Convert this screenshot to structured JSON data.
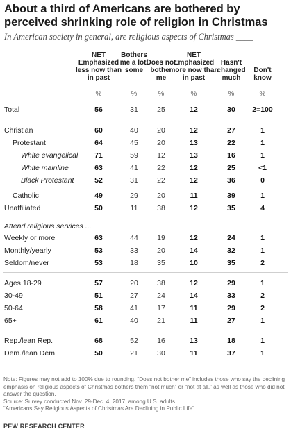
{
  "title": "About a third of Americans are bothered by perceived shrinking role of religion in Christmas",
  "subtitle": "In American society in general, are religious aspects of Christmas ____",
  "pct_symbol": "%",
  "chart_data": {
    "type": "table",
    "columns": [
      "NET Emphasized less now than in past",
      "Bothers me a lot/ some",
      "Does not bother me",
      "NET Emphasized more now than in past",
      "Hasn't changed much",
      "Don't know"
    ],
    "section_label": "Attend religious services ...",
    "rows": [
      {
        "label": "Total",
        "values": [
          "56",
          "31",
          "25",
          "12",
          "30",
          "2=100"
        ]
      },
      {
        "label": "Christian",
        "values": [
          "60",
          "40",
          "20",
          "12",
          "27",
          "1"
        ]
      },
      {
        "label": "Protestant",
        "values": [
          "64",
          "45",
          "20",
          "13",
          "22",
          "1"
        ]
      },
      {
        "label": "White evangelical",
        "values": [
          "71",
          "59",
          "12",
          "13",
          "16",
          "1"
        ]
      },
      {
        "label": "White mainline",
        "values": [
          "63",
          "41",
          "22",
          "12",
          "25",
          "<1"
        ]
      },
      {
        "label": "Black Protestant",
        "values": [
          "52",
          "31",
          "22",
          "12",
          "36",
          "0"
        ]
      },
      {
        "label": "Catholic",
        "values": [
          "49",
          "29",
          "20",
          "11",
          "39",
          "1"
        ]
      },
      {
        "label": "Unaffiliated",
        "values": [
          "50",
          "11",
          "38",
          "12",
          "35",
          "4"
        ]
      },
      {
        "label": "Weekly or more",
        "values": [
          "63",
          "44",
          "19",
          "12",
          "24",
          "1"
        ]
      },
      {
        "label": "Monthly/yearly",
        "values": [
          "53",
          "33",
          "20",
          "14",
          "32",
          "1"
        ]
      },
      {
        "label": "Seldom/never",
        "values": [
          "53",
          "18",
          "35",
          "10",
          "35",
          "2"
        ]
      },
      {
        "label": "Ages 18-29",
        "values": [
          "57",
          "20",
          "38",
          "12",
          "29",
          "1"
        ]
      },
      {
        "label": "30-49",
        "values": [
          "51",
          "27",
          "24",
          "14",
          "33",
          "2"
        ]
      },
      {
        "label": "50-64",
        "values": [
          "58",
          "41",
          "17",
          "11",
          "29",
          "2"
        ]
      },
      {
        "label": "65+",
        "values": [
          "61",
          "40",
          "21",
          "11",
          "27",
          "1"
        ]
      },
      {
        "label": "Rep./lean Rep.",
        "values": [
          "68",
          "52",
          "16",
          "13",
          "18",
          "1"
        ]
      },
      {
        "label": "Dem./lean Dem.",
        "values": [
          "50",
          "21",
          "30",
          "11",
          "37",
          "1"
        ]
      }
    ]
  },
  "notes": {
    "note": "Note: Figures may not add to 100% due to rounding. “Does not bother me” includes those who say the declining emphasis on religious aspects of Christmas bothers them “not much” or “not at all,” as well as those who did not answer the question.",
    "source": "Source: Survey conducted Nov. 29-Dec. 4, 2017, among U.S. adults.",
    "report": "“Americans Say Religious Aspects of Christmas Are Declining in Public Life”"
  },
  "footer": "PEW RESEARCH CENTER"
}
